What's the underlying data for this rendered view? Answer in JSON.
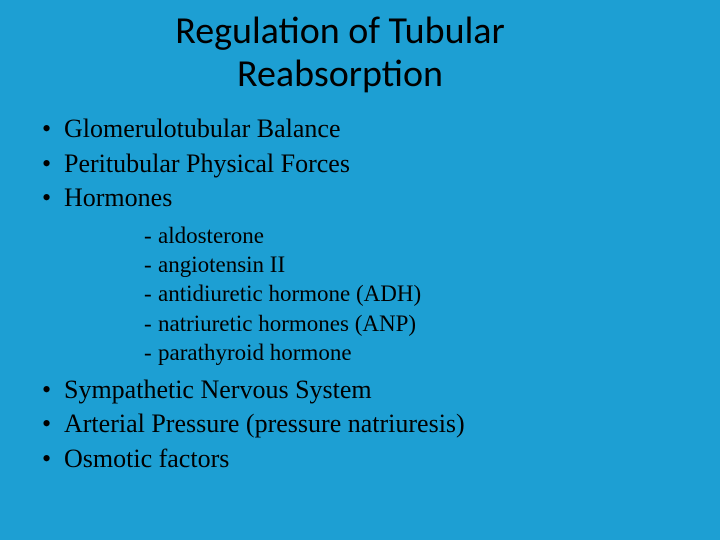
{
  "background_color": "#1d9fd3",
  "text_color": "#000000",
  "title_font_family": "Calibri",
  "body_font_family": "Times New Roman",
  "title_fontsize": 38,
  "bullet_fontsize": 26,
  "sublist_fontsize": 23,
  "title": "Regulation of Tubular Reabsorption",
  "bullets": {
    "b0": "Glomerulotubular Balance",
    "b1": "Peritubular Physical Forces",
    "b2": "Hormones",
    "b3": "Sympathetic Nervous System",
    "b4": "Arterial Pressure (pressure natriuresis)",
    "b5": "Osmotic factors"
  },
  "hormones": {
    "h0": "aldosterone",
    "h1": "angiotensin II",
    "h2": "antidiuretic hormone (ADH)",
    "h3": "natriuretic hormones (ANP)",
    "h4": "parathyroid hormone"
  }
}
